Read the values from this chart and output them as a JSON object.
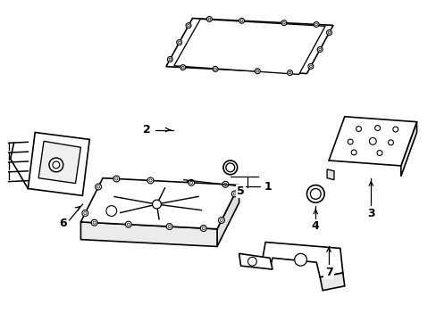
{
  "background_color": "#ffffff",
  "line_color": "#000000",
  "line_width": 1.2,
  "figsize": [
    4.89,
    3.6
  ],
  "dpi": 100
}
